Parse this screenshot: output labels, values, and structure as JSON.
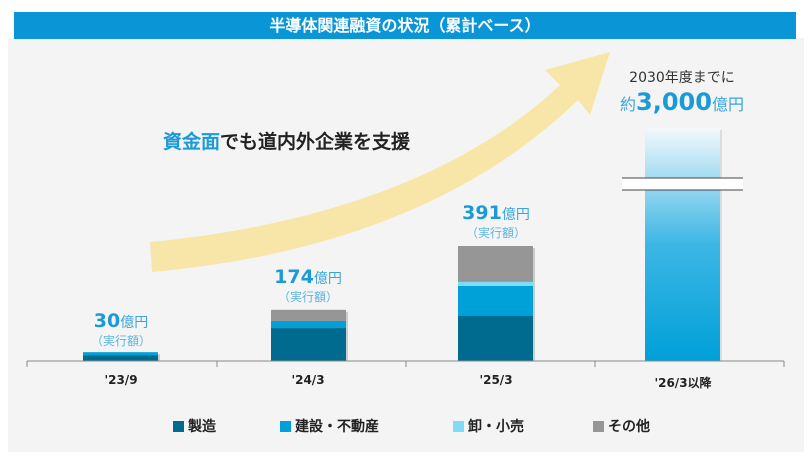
{
  "title": "半導体関連融資の状況（累計ベース）",
  "slogan": {
    "highlight": "資金面",
    "rest": "でも道内外企業を支援"
  },
  "goal": {
    "line1": "2030年度までに",
    "prefix": "約",
    "value": "3,000",
    "unit": "億円"
  },
  "chart_data": {
    "type": "bar",
    "stacked": true,
    "title": "半導体関連融資の状況（累計ベース）",
    "categories": [
      "'23/9",
      "'24/3",
      "'25/3",
      "'26/3以降"
    ],
    "series": [
      {
        "name": "製造",
        "color": "#006b8f",
        "values": [
          20,
          112,
          153,
          0
        ]
      },
      {
        "name": "建設・不動産",
        "color": "#00a0d8",
        "values": [
          10,
          24,
          102,
          0
        ]
      },
      {
        "name": "卸・小売",
        "color": "#7fdcf8",
        "values": [
          0,
          0,
          14,
          0
        ]
      },
      {
        "name": "その他",
        "color": "#969696",
        "values": [
          0,
          38,
          122,
          0
        ]
      }
    ],
    "totals": [
      {
        "num": "30",
        "unit": "億円",
        "sub": "（実行額）"
      },
      {
        "num": "174",
        "unit": "億円",
        "sub": "（実行額）"
      },
      {
        "num": "391",
        "unit": "億円",
        "sub": "（実行額）"
      },
      null
    ],
    "target": {
      "category": "'26/3以降",
      "value": 3000,
      "axis_break": true
    },
    "legend_position": "bottom"
  }
}
